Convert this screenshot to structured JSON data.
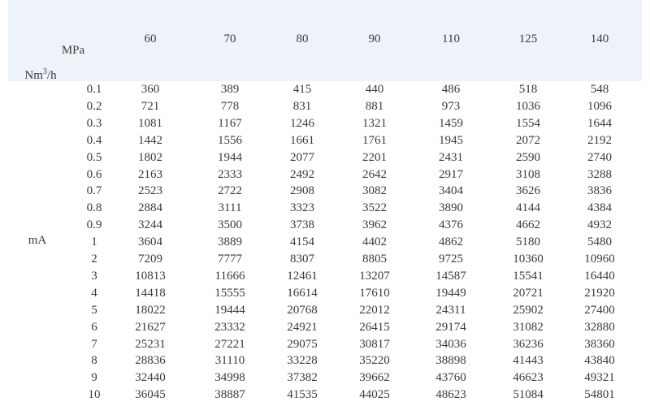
{
  "header": {
    "pressure_unit": "MPa",
    "flow_unit_base": "Nm",
    "flow_unit_exp": "3",
    "flow_unit_tail": "/h",
    "columns": [
      "60",
      "70",
      "80",
      "90",
      "110",
      "125",
      "140"
    ]
  },
  "row_unit": "mA",
  "rows": [
    {
      "label": "0.1",
      "values": [
        "360",
        "389",
        "415",
        "440",
        "486",
        "518",
        "548"
      ]
    },
    {
      "label": "0.2",
      "values": [
        "721",
        "778",
        "831",
        "881",
        "973",
        "1036",
        "1096"
      ]
    },
    {
      "label": "0.3",
      "values": [
        "1081",
        "1167",
        "1246",
        "1321",
        "1459",
        "1554",
        "1644"
      ]
    },
    {
      "label": "0.4",
      "values": [
        "1442",
        "1556",
        "1661",
        "1761",
        "1945",
        "2072",
        "2192"
      ]
    },
    {
      "label": "0.5",
      "values": [
        "1802",
        "1944",
        "2077",
        "2201",
        "2431",
        "2590",
        "2740"
      ]
    },
    {
      "label": "0.6",
      "values": [
        "2163",
        "2333",
        "2492",
        "2642",
        "2917",
        "3108",
        "3288"
      ]
    },
    {
      "label": "0.7",
      "values": [
        "2523",
        "2722",
        "2908",
        "3082",
        "3404",
        "3626",
        "3836"
      ]
    },
    {
      "label": "0.8",
      "values": [
        "2884",
        "3111",
        "3323",
        "3522",
        "3890",
        "4144",
        "4384"
      ]
    },
    {
      "label": "0.9",
      "values": [
        "3244",
        "3500",
        "3738",
        "3962",
        "4376",
        "4662",
        "4932"
      ]
    },
    {
      "label": "1",
      "values": [
        "3604",
        "3889",
        "4154",
        "4402",
        "4862",
        "5180",
        "5480"
      ]
    },
    {
      "label": "2",
      "values": [
        "7209",
        "7777",
        "8307",
        "8805",
        "9725",
        "10360",
        "10960"
      ]
    },
    {
      "label": "3",
      "values": [
        "10813",
        "11666",
        "12461",
        "13207",
        "14587",
        "15541",
        "16440"
      ]
    },
    {
      "label": "4",
      "values": [
        "14418",
        "15555",
        "16614",
        "17610",
        "19449",
        "20721",
        "21920"
      ]
    },
    {
      "label": "5",
      "values": [
        "18022",
        "19444",
        "20768",
        "22012",
        "24311",
        "25902",
        "27400"
      ]
    },
    {
      "label": "6",
      "values": [
        "21627",
        "23332",
        "24921",
        "26415",
        "29174",
        "31082",
        "32880"
      ]
    },
    {
      "label": "7",
      "values": [
        "25231",
        "27221",
        "29075",
        "30817",
        "34036",
        "36236",
        "38360"
      ]
    },
    {
      "label": "8",
      "values": [
        "28836",
        "31110",
        "33228",
        "35220",
        "38898",
        "41443",
        "43840"
      ]
    },
    {
      "label": "9",
      "values": [
        "32440",
        "34998",
        "37382",
        "39662",
        "43760",
        "46623",
        "49321"
      ]
    },
    {
      "label": "10",
      "values": [
        "36045",
        "38887",
        "41535",
        "44025",
        "48623",
        "51084",
        "54801"
      ]
    }
  ]
}
